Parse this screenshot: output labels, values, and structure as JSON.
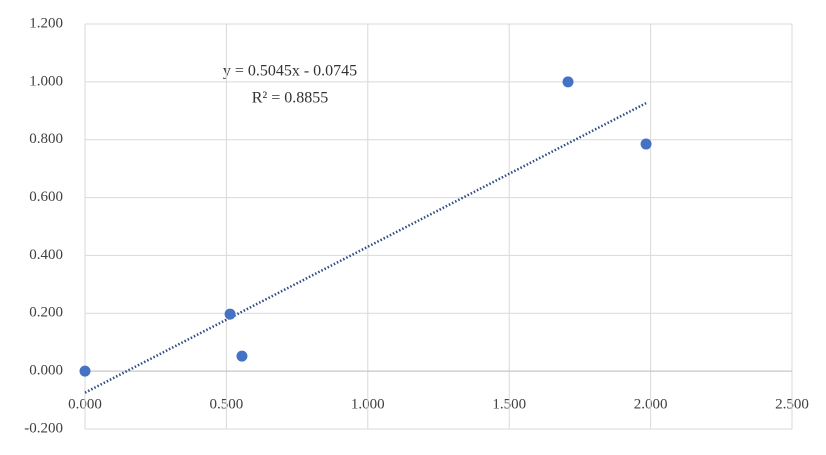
{
  "chart_data": {
    "type": "scatter",
    "x": [
      0.0,
      0.513,
      0.555,
      1.708,
      1.984
    ],
    "series": [
      {
        "color": "#4472c4",
        "values": [
          0.0,
          0.197,
          0.052,
          1.0,
          0.785
        ]
      }
    ],
    "trendline": {
      "slope": 0.5045,
      "intercept": -0.0745,
      "color": "#2e4a86"
    },
    "annotations": [
      "y = 0.5045x - 0.0745",
      "R² = 0.8855"
    ],
    "xlim": [
      0,
      2.5
    ],
    "xticks": [
      {
        "value": 0,
        "label": "0.000"
      },
      {
        "value": 0.5,
        "label": "0.500"
      },
      {
        "value": 1,
        "label": "1.000"
      },
      {
        "value": 1.5,
        "label": "1.500"
      },
      {
        "value": 2,
        "label": "2.000"
      },
      {
        "value": 2.5,
        "label": "2.500"
      }
    ],
    "ylim": [
      -0.2,
      1.2
    ],
    "yticks": [
      {
        "value": -0.2,
        "label": "-0.200"
      },
      {
        "value": 0,
        "label": "0.000"
      },
      {
        "value": 0.2,
        "label": "0.200"
      },
      {
        "value": 0.4,
        "label": "0.400"
      },
      {
        "value": 0.6,
        "label": "0.600"
      },
      {
        "value": 0.8,
        "label": "0.800"
      },
      {
        "value": 1,
        "label": "1.000"
      },
      {
        "value": 1.2,
        "label": "1.200"
      }
    ],
    "grid": true
  }
}
